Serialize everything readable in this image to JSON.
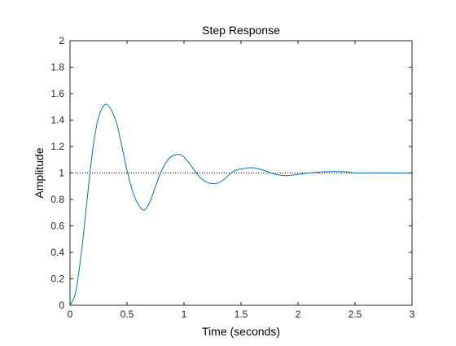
{
  "chart_data": {
    "type": "line",
    "title": "Step Response",
    "xlabel": "Time (seconds)",
    "ylabel": "Amplitude",
    "xlim": [
      0,
      3
    ],
    "ylim": [
      0,
      2
    ],
    "xticks": [
      0,
      0.5,
      1,
      1.5,
      2,
      2.5,
      3
    ],
    "xtick_labels": [
      "0",
      "0.5",
      "1",
      "1.5",
      "2",
      "2.5",
      "3"
    ],
    "yticks": [
      0,
      0.2,
      0.4,
      0.6,
      0.8,
      1,
      1.2,
      1.4,
      1.6,
      1.8,
      2
    ],
    "ytick_labels": [
      "0",
      "0.2",
      "0.4",
      "0.6",
      "0.8",
      "1",
      "1.2",
      "1.4",
      "1.6",
      "1.8",
      "2"
    ],
    "grid": false,
    "series": [
      {
        "color": "#0072BD",
        "x": [
          0,
          0.05,
          0.1,
          0.15,
          0.2,
          0.25,
          0.32,
          0.4,
          0.45,
          0.5,
          0.55,
          0.6,
          0.65,
          0.7,
          0.75,
          0.8,
          0.85,
          0.9,
          0.96,
          1.0,
          1.05,
          1.1,
          1.15,
          1.2,
          1.28,
          1.35,
          1.4,
          1.45,
          1.5,
          1.6,
          1.7,
          1.8,
          1.9,
          2.0,
          2.1,
          2.25,
          2.4,
          2.5,
          2.6,
          2.75,
          2.9,
          3.0
        ],
        "y": [
          0,
          0.1,
          0.4,
          0.8,
          1.18,
          1.42,
          1.52,
          1.4,
          1.22,
          1.02,
          0.86,
          0.76,
          0.72,
          0.78,
          0.9,
          1.01,
          1.09,
          1.13,
          1.14,
          1.12,
          1.07,
          1.01,
          0.96,
          0.93,
          0.92,
          0.95,
          0.99,
          1.02,
          1.03,
          1.04,
          1.02,
          0.99,
          0.98,
          0.99,
          1.0,
          1.01,
          1.01,
          1.0,
          1.0,
          1.0,
          1.0,
          1.0
        ]
      }
    ],
    "reference_line": {
      "y": 1,
      "style": "dotted",
      "color": "#000000"
    }
  }
}
